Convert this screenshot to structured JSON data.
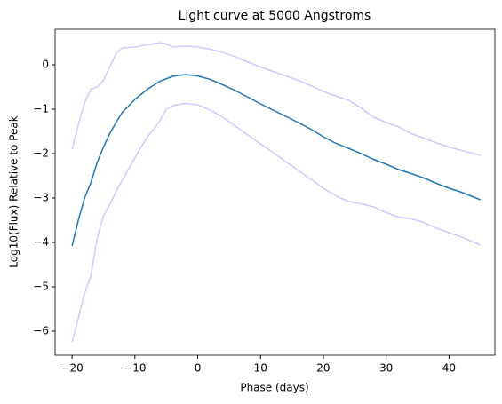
{
  "chart_data": {
    "type": "line",
    "title": "Light curve at 5000 Angstroms",
    "x_label": "Phase (days)",
    "y_label": "Log10(Flux) Relative to Peak",
    "xlim": [
      -22.7,
      47.3
    ],
    "ylim": [
      -6.54,
      0.8
    ],
    "xticks": [
      {
        "value": -20,
        "label": "−20"
      },
      {
        "value": -10,
        "label": "−10"
      },
      0,
      10,
      20,
      30,
      40
    ],
    "yticks": [
      {
        "value": -6,
        "label": "−6"
      },
      {
        "value": -5,
        "label": "−5"
      },
      {
        "value": -4,
        "label": "−4"
      },
      {
        "value": -3,
        "label": "−3"
      },
      {
        "value": -2,
        "label": "−2"
      },
      {
        "value": -1,
        "label": "−1"
      },
      0
    ],
    "series": [
      {
        "color": "#ccccff",
        "x": [
          -20,
          -19,
          -18,
          -17,
          -16,
          -15,
          -14,
          -13,
          -12,
          -10,
          -8,
          -6,
          -5,
          -4,
          -2,
          0,
          2,
          4,
          6,
          8,
          10,
          12,
          14,
          16,
          18,
          20,
          22,
          24,
          26,
          28,
          30,
          32,
          34,
          36,
          38,
          40,
          42,
          45
        ],
        "values": [
          -1.9,
          -1.35,
          -0.85,
          -0.55,
          -0.5,
          -0.35,
          -0.05,
          0.25,
          0.38,
          0.4,
          0.45,
          0.5,
          0.47,
          0.4,
          0.42,
          0.4,
          0.35,
          0.28,
          0.18,
          0.06,
          -0.05,
          -0.15,
          -0.25,
          -0.35,
          -0.47,
          -0.6,
          -0.7,
          -0.8,
          -0.97,
          -1.18,
          -1.3,
          -1.4,
          -1.55,
          -1.65,
          -1.76,
          -1.85,
          -1.93,
          -2.04
        ]
      },
      {
        "color": "#1f77b4",
        "x": [
          -20,
          -19,
          -18,
          -17,
          -16,
          -15,
          -14,
          -13,
          -12,
          -11,
          -10,
          -8,
          -6,
          -4,
          -2,
          0,
          2,
          4,
          6,
          8,
          10,
          12,
          14,
          16,
          18,
          20,
          22,
          24,
          26,
          28,
          30,
          32,
          34,
          36,
          38,
          40,
          42,
          45
        ],
        "values": [
          -4.08,
          -3.5,
          -3.0,
          -2.65,
          -2.2,
          -1.85,
          -1.55,
          -1.3,
          -1.07,
          -0.93,
          -0.78,
          -0.55,
          -0.37,
          -0.26,
          -0.22,
          -0.25,
          -0.33,
          -0.45,
          -0.58,
          -0.73,
          -0.88,
          -1.02,
          -1.16,
          -1.3,
          -1.45,
          -1.62,
          -1.77,
          -1.88,
          -2.0,
          -2.13,
          -2.24,
          -2.36,
          -2.45,
          -2.55,
          -2.67,
          -2.78,
          -2.87,
          -3.04
        ]
      },
      {
        "color": "#ccccff",
        "x": [
          -20,
          -19,
          -18,
          -17,
          -16,
          -15,
          -14,
          -13,
          -12,
          -11,
          -10,
          -9,
          -8,
          -7,
          -6,
          -5,
          -4,
          -2,
          0,
          2,
          4,
          6,
          8,
          10,
          12,
          14,
          16,
          18,
          20,
          22,
          24,
          26,
          28,
          30,
          32,
          34,
          36,
          38,
          40,
          42,
          45
        ],
        "values": [
          -6.25,
          -5.7,
          -5.15,
          -4.75,
          -3.9,
          -3.4,
          -3.15,
          -2.85,
          -2.6,
          -2.35,
          -2.1,
          -1.85,
          -1.62,
          -1.45,
          -1.25,
          -1.0,
          -0.92,
          -0.87,
          -0.9,
          -1.02,
          -1.18,
          -1.38,
          -1.58,
          -1.78,
          -1.98,
          -2.18,
          -2.38,
          -2.58,
          -2.78,
          -2.95,
          -3.08,
          -3.13,
          -3.2,
          -3.33,
          -3.43,
          -3.47,
          -3.55,
          -3.68,
          -3.78,
          -3.88,
          -4.06
        ]
      }
    ]
  }
}
